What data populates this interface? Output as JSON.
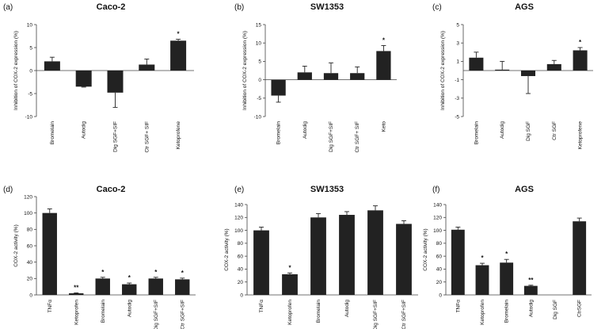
{
  "colors": {
    "bar": "#222222",
    "axis": "#444444",
    "background": "#ffffff"
  },
  "chart_data": [
    {
      "type": "bar",
      "panel_label": "(a)",
      "title": "Caco-2",
      "ylabel": "Inhibition of COX-2 expression (%)",
      "ylim": [
        -10,
        10
      ],
      "yticks": [
        "-10",
        "-5",
        "0",
        "5",
        "10"
      ],
      "ytick_values": [
        -10,
        -5,
        0,
        5,
        10
      ],
      "categories": [
        "Bromelain",
        "Autodig",
        "Dig SGF+SIF",
        "Ctr SGF+ SIF",
        "Ketoprofene"
      ],
      "values": [
        2.0,
        -3.5,
        -4.8,
        1.3,
        6.5
      ],
      "errors": [
        0.9,
        0.1,
        3.2,
        1.2,
        0.3
      ],
      "annotations": [
        "",
        "",
        "",
        "",
        "*"
      ]
    },
    {
      "type": "bar",
      "panel_label": "(b)",
      "title": "SW1353",
      "ylabel": "Inhibition of COX-2 expression (%)",
      "ylim": [
        -10,
        15
      ],
      "yticks": [
        "-10",
        "-5",
        "0",
        "5",
        "10",
        "15"
      ],
      "ytick_values": [
        -10,
        -5,
        0,
        5,
        10,
        15
      ],
      "categories": [
        "Bromelain",
        "Autodig",
        "Dig SGF+SIF",
        "Ctr SGF+ SIF",
        "Keto"
      ],
      "values": [
        -4.3,
        2.0,
        1.8,
        1.8,
        7.8
      ],
      "errors": [
        1.8,
        1.7,
        2.8,
        1.7,
        1.5
      ],
      "annotations": [
        "",
        "",
        "",
        "",
        "*"
      ]
    },
    {
      "type": "bar",
      "panel_label": "(c)",
      "title": "AGS",
      "ylabel": "Inhibition of COX-2 expression (%)",
      "ylim": [
        -5,
        5
      ],
      "yticks": [
        "-5",
        "-3",
        "-1",
        "1",
        "3",
        "5"
      ],
      "ytick_values": [
        -5,
        -3,
        -1,
        1,
        3,
        5
      ],
      "categories": [
        "Bromelain",
        "Autodig",
        "Dig SGF",
        "Ctr SGF",
        "Ketoprofene"
      ],
      "values": [
        1.4,
        0.1,
        -0.6,
        0.7,
        2.2
      ],
      "errors": [
        0.6,
        0.9,
        1.9,
        0.4,
        0.3
      ],
      "annotations": [
        "",
        "",
        "",
        "",
        "*"
      ]
    },
    {
      "type": "bar",
      "panel_label": "(d)",
      "title": "Caco-2",
      "ylabel": "COX-2 activity (%)",
      "ylim": [
        0,
        120
      ],
      "yticks": [
        "0",
        "20",
        "40",
        "60",
        "80",
        "100",
        "120"
      ],
      "ytick_values": [
        0,
        20,
        40,
        60,
        80,
        100,
        120
      ],
      "categories": [
        "TNFα",
        "Ketoprofen",
        "Bromelain",
        "Autodig",
        "Dig SGF+SIF",
        "Ctr SGF+SIF"
      ],
      "values": [
        100,
        2,
        20,
        13,
        20,
        19
      ],
      "errors": [
        5,
        0.5,
        1.5,
        1.5,
        1.5,
        1.5
      ],
      "annotations": [
        "",
        "**",
        "*",
        "*",
        "*",
        "*"
      ]
    },
    {
      "type": "bar",
      "panel_label": "(e)",
      "title": "SW1353",
      "ylabel": "COX-2 activity (%)",
      "ylim": [
        0,
        140
      ],
      "yticks": [
        "0",
        "20",
        "40",
        "60",
        "80",
        "100",
        "120",
        "140"
      ],
      "ytick_values": [
        0,
        20,
        40,
        60,
        80,
        100,
        120,
        140
      ],
      "categories": [
        "TNFα",
        "Ketoprofen",
        "Bromelain",
        "Autodig",
        "Dig SGF+SIF",
        "Ctr SGF+SIF"
      ],
      "values": [
        100,
        32,
        120,
        124,
        131,
        110
      ],
      "errors": [
        5,
        2,
        6,
        5,
        7,
        5
      ],
      "annotations": [
        "",
        "*",
        "",
        "",
        "",
        ""
      ]
    },
    {
      "type": "bar",
      "panel_label": "(f)",
      "title": "AGS",
      "ylabel": "COX-2 activity (%)",
      "ylim": [
        0,
        140
      ],
      "yticks": [
        "0",
        "20",
        "40",
        "60",
        "80",
        "100",
        "120",
        "140"
      ],
      "ytick_values": [
        0,
        20,
        40,
        60,
        80,
        100,
        120,
        140
      ],
      "categories": [
        "TNFα",
        "Ketoprofen",
        "Bromelain",
        "Autodig",
        "Dig SGF",
        "CtrSGF"
      ],
      "values": [
        101,
        46,
        50,
        14,
        0,
        114
      ],
      "errors": [
        4,
        3,
        5,
        1,
        0,
        5
      ],
      "annotations": [
        "",
        "*",
        "*",
        "**",
        "",
        ""
      ]
    }
  ]
}
